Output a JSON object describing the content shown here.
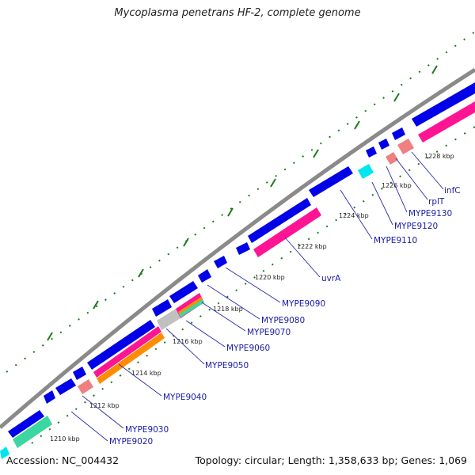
{
  "title": "Mycoplasma penetrans HF-2, complete genome",
  "footer": {
    "accession": "Accession: NC_004432",
    "info": "Topology: circular; Length: 1,358,633 bp; Genes: 1,069"
  },
  "colors": {
    "backbone": "#8a8a8a",
    "cds": "#0000e8",
    "rrna_tick": "#1a7a1a",
    "magenta": "#ff1493",
    "orange": "#ff8c00",
    "teal": "#3cd6a0",
    "cyan": "#00e5ee",
    "salmon": "#f08080",
    "grey": "#c0c0c0",
    "label": "#1a1aa8"
  },
  "kbp_labels": [
    "1210 kbp",
    "1212 kbp",
    "1214 kbp",
    "1216 kbp",
    "1218 kbp",
    "1220 kbp",
    "1222 kbp",
    "1224 kbp",
    "1226 kbp",
    "1228 kbp"
  ],
  "gene_labels": [
    "MYPE9020",
    "MYPE9030",
    "MYPE9040",
    "MYPE9050",
    "MYPE9060",
    "MYPE9070",
    "MYPE9080",
    "MYPE9090",
    "uvrA",
    "MYPE9110",
    "MYPE9120",
    "MYPE9130",
    "rplT",
    "infC"
  ]
}
